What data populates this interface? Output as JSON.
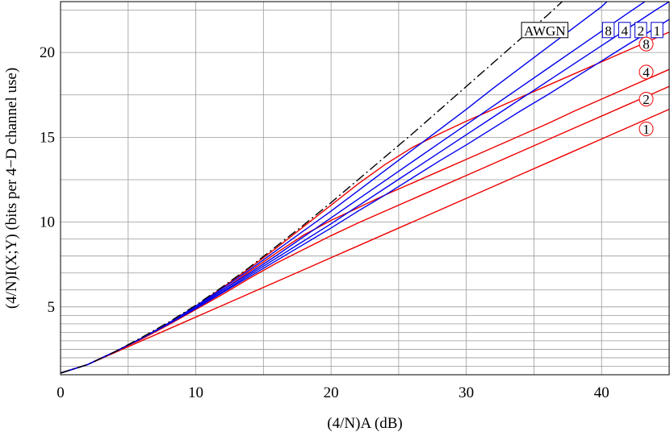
{
  "chart_data": {
    "type": "line",
    "xlabel": "(4/N)A (dB)",
    "ylabel": "(4/N)I(X;Y)  (bits per 4−D channel use)",
    "xlim": [
      0,
      45
    ],
    "ylim": [
      1,
      23
    ],
    "x_ticks": [
      0,
      10,
      20,
      30,
      40
    ],
    "y_ticks": [
      5,
      10,
      15,
      20
    ],
    "x_grid": [
      0,
      5,
      10,
      15,
      20,
      25,
      30,
      35,
      40,
      45
    ],
    "y_grid": [
      1.5,
      2,
      2.5,
      3,
      3.5,
      4,
      4.5,
      5,
      6,
      7,
      8,
      9,
      10,
      12.5,
      15,
      17.5,
      20,
      22.5
    ],
    "grid": true,
    "legend": "none",
    "colors": {
      "awgn": "#000000",
      "blue_family": "#0000ee",
      "red_family": "#ee0000",
      "label_circle": "#ee0000",
      "label_box_blue": "#0000cc"
    },
    "series": [
      {
        "name": "AWGN",
        "family": "black",
        "style": "dash-dot",
        "points": [
          [
            0,
            1.1
          ],
          [
            2,
            1.6
          ],
          [
            4,
            2.35
          ],
          [
            6,
            3.2
          ],
          [
            8,
            4.1
          ],
          [
            10,
            5.1
          ],
          [
            12,
            6.2
          ],
          [
            14,
            7.35
          ],
          [
            16,
            8.6
          ],
          [
            18,
            9.85
          ],
          [
            20,
            11.15
          ],
          [
            22,
            12.5
          ],
          [
            24,
            13.85
          ],
          [
            26,
            15.2
          ],
          [
            28,
            16.6
          ],
          [
            30,
            18.0
          ],
          [
            32,
            19.4
          ],
          [
            34,
            20.8
          ],
          [
            36,
            22.2
          ],
          [
            37.5,
            23.3
          ]
        ]
      },
      {
        "name": "8",
        "family": "blue",
        "style": "solid",
        "points": [
          [
            0,
            1.1
          ],
          [
            2,
            1.6
          ],
          [
            4,
            2.35
          ],
          [
            6,
            3.15
          ],
          [
            8,
            4.05
          ],
          [
            10,
            5.05
          ],
          [
            12,
            6.1
          ],
          [
            14,
            7.2
          ],
          [
            16,
            8.35
          ],
          [
            18,
            9.5
          ],
          [
            20,
            10.65
          ],
          [
            22,
            11.85
          ],
          [
            24,
            13.05
          ],
          [
            26,
            14.25
          ],
          [
            28,
            15.45
          ],
          [
            30,
            16.65
          ],
          [
            32,
            17.9
          ],
          [
            34,
            19.1
          ],
          [
            36,
            20.3
          ],
          [
            38,
            21.5
          ],
          [
            40,
            22.7
          ],
          [
            40.8,
            23.3
          ]
        ]
      },
      {
        "name": "4",
        "family": "blue",
        "style": "solid",
        "points": [
          [
            0,
            1.1
          ],
          [
            2,
            1.6
          ],
          [
            4,
            2.35
          ],
          [
            6,
            3.15
          ],
          [
            8,
            4.05
          ],
          [
            10,
            5.0
          ],
          [
            12,
            6.0
          ],
          [
            14,
            7.0
          ],
          [
            16,
            8.05
          ],
          [
            18,
            9.15
          ],
          [
            20,
            10.25
          ],
          [
            22,
            11.35
          ],
          [
            24,
            12.45
          ],
          [
            26,
            13.55
          ],
          [
            28,
            14.65
          ],
          [
            30,
            15.75
          ],
          [
            32,
            16.85
          ],
          [
            34,
            17.95
          ],
          [
            36,
            19.05
          ],
          [
            38,
            20.15
          ],
          [
            40,
            21.25
          ],
          [
            42,
            22.35
          ],
          [
            43.2,
            23.0
          ]
        ]
      },
      {
        "name": "2",
        "family": "blue",
        "style": "solid",
        "points": [
          [
            0,
            1.1
          ],
          [
            2,
            1.6
          ],
          [
            4,
            2.35
          ],
          [
            6,
            3.15
          ],
          [
            8,
            4.0
          ],
          [
            10,
            4.95
          ],
          [
            12,
            5.9
          ],
          [
            14,
            6.9
          ],
          [
            16,
            7.9
          ],
          [
            18,
            8.9
          ],
          [
            20,
            9.9
          ],
          [
            22,
            10.95
          ],
          [
            24,
            12.0
          ],
          [
            26,
            13.05
          ],
          [
            28,
            14.1
          ],
          [
            30,
            15.15
          ],
          [
            32,
            16.2
          ],
          [
            34,
            17.25
          ],
          [
            36,
            18.3
          ],
          [
            38,
            19.35
          ],
          [
            40,
            20.4
          ],
          [
            42,
            21.45
          ],
          [
            44,
            22.5
          ],
          [
            45,
            23.0
          ]
        ]
      },
      {
        "name": "1",
        "family": "blue",
        "style": "solid",
        "points": [
          [
            0,
            1.1
          ],
          [
            2,
            1.6
          ],
          [
            4,
            2.35
          ],
          [
            6,
            3.15
          ],
          [
            8,
            4.0
          ],
          [
            10,
            4.9
          ],
          [
            12,
            5.85
          ],
          [
            14,
            6.8
          ],
          [
            16,
            7.75
          ],
          [
            18,
            8.7
          ],
          [
            20,
            9.65
          ],
          [
            22,
            10.65
          ],
          [
            24,
            11.6
          ],
          [
            26,
            12.6
          ],
          [
            28,
            13.6
          ],
          [
            30,
            14.55
          ],
          [
            32,
            15.55
          ],
          [
            34,
            16.55
          ],
          [
            36,
            17.5
          ],
          [
            38,
            18.5
          ],
          [
            40,
            19.5
          ],
          [
            42,
            20.5
          ],
          [
            44,
            21.45
          ],
          [
            45,
            21.95
          ]
        ]
      },
      {
        "name": "8",
        "family": "red",
        "style": "solid",
        "points": [
          [
            0,
            1.1
          ],
          [
            2,
            1.6
          ],
          [
            4,
            2.35
          ],
          [
            6,
            3.15
          ],
          [
            8,
            4.05
          ],
          [
            10,
            5.05
          ],
          [
            12,
            6.15
          ],
          [
            14,
            7.3
          ],
          [
            16,
            8.5
          ],
          [
            18,
            9.75
          ],
          [
            20,
            11.0
          ],
          [
            22,
            12.25
          ],
          [
            24,
            13.4
          ],
          [
            26,
            14.4
          ],
          [
            28,
            15.2
          ],
          [
            30,
            15.95
          ],
          [
            32,
            16.65
          ],
          [
            34,
            17.35
          ],
          [
            36,
            18.05
          ],
          [
            38,
            18.75
          ],
          [
            40,
            19.45
          ],
          [
            42,
            20.15
          ],
          [
            44,
            20.85
          ],
          [
            45,
            21.2
          ]
        ]
      },
      {
        "name": "4",
        "family": "red",
        "style": "solid",
        "points": [
          [
            0,
            1.1
          ],
          [
            2,
            1.6
          ],
          [
            4,
            2.35
          ],
          [
            6,
            3.15
          ],
          [
            8,
            4.05
          ],
          [
            10,
            5.0
          ],
          [
            12,
            6.0
          ],
          [
            14,
            7.1
          ],
          [
            16,
            8.2
          ],
          [
            18,
            9.25
          ],
          [
            20,
            10.1
          ],
          [
            22,
            10.85
          ],
          [
            24,
            11.6
          ],
          [
            26,
            12.3
          ],
          [
            28,
            13.0
          ],
          [
            30,
            13.7
          ],
          [
            32,
            14.4
          ],
          [
            34,
            15.1
          ],
          [
            36,
            15.8
          ],
          [
            38,
            16.55
          ],
          [
            40,
            17.25
          ],
          [
            42,
            17.95
          ],
          [
            44,
            18.65
          ],
          [
            45,
            19.0
          ]
        ]
      },
      {
        "name": "2",
        "family": "red",
        "style": "solid",
        "points": [
          [
            0,
            1.1
          ],
          [
            2,
            1.6
          ],
          [
            4,
            2.35
          ],
          [
            6,
            3.1
          ],
          [
            8,
            3.95
          ],
          [
            10,
            4.85
          ],
          [
            12,
            5.75
          ],
          [
            14,
            6.7
          ],
          [
            16,
            7.6
          ],
          [
            18,
            8.4
          ],
          [
            20,
            9.2
          ],
          [
            22,
            9.95
          ],
          [
            24,
            10.65
          ],
          [
            26,
            11.35
          ],
          [
            28,
            12.05
          ],
          [
            30,
            12.75
          ],
          [
            32,
            13.45
          ],
          [
            34,
            14.15
          ],
          [
            36,
            14.85
          ],
          [
            38,
            15.55
          ],
          [
            40,
            16.25
          ],
          [
            42,
            16.95
          ],
          [
            44,
            17.65
          ],
          [
            45,
            18.0
          ]
        ]
      },
      {
        "name": "1",
        "family": "red",
        "style": "solid",
        "points": [
          [
            0,
            1.1
          ],
          [
            2,
            1.6
          ],
          [
            4,
            2.3
          ],
          [
            6,
            3.0
          ],
          [
            8,
            3.7
          ],
          [
            10,
            4.4
          ],
          [
            12,
            5.1
          ],
          [
            14,
            5.8
          ],
          [
            16,
            6.5
          ],
          [
            18,
            7.2
          ],
          [
            20,
            7.9
          ],
          [
            22,
            8.6
          ],
          [
            24,
            9.3
          ],
          [
            26,
            10.0
          ],
          [
            28,
            10.7
          ],
          [
            30,
            11.4
          ],
          [
            32,
            12.1
          ],
          [
            34,
            12.8
          ],
          [
            36,
            13.5
          ],
          [
            38,
            14.2
          ],
          [
            40,
            14.9
          ],
          [
            42,
            15.6
          ],
          [
            44,
            16.3
          ],
          [
            45,
            16.65
          ]
        ]
      }
    ],
    "annotations": [
      {
        "text": "AWGN",
        "kind": "box",
        "family": "black",
        "x": 35.8,
        "y": 21.3
      },
      {
        "text": "8",
        "kind": "box",
        "family": "blue",
        "x": 40.5,
        "y": 21.3
      },
      {
        "text": "4",
        "kind": "box",
        "family": "blue",
        "x": 41.7,
        "y": 21.3
      },
      {
        "text": "2",
        "kind": "box",
        "family": "blue",
        "x": 42.9,
        "y": 21.3
      },
      {
        "text": "1",
        "kind": "box",
        "family": "blue",
        "x": 44.1,
        "y": 21.3
      },
      {
        "text": "8",
        "kind": "circle",
        "family": "red",
        "x": 43.3,
        "y": 20.5
      },
      {
        "text": "4",
        "kind": "circle",
        "family": "red",
        "x": 43.3,
        "y": 18.85
      },
      {
        "text": "2",
        "kind": "circle",
        "family": "red",
        "x": 43.3,
        "y": 17.25
      },
      {
        "text": "1",
        "kind": "circle",
        "family": "red",
        "x": 43.3,
        "y": 15.5
      }
    ]
  }
}
